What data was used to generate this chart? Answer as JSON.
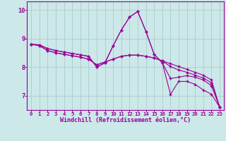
{
  "xlabel": "Windchill (Refroidissement éolien,°C)",
  "background_color": "#cce8e8",
  "grid_color": "#aacccc",
  "line_color": "#990099",
  "hours": [
    0,
    1,
    2,
    3,
    4,
    5,
    6,
    7,
    8,
    9,
    10,
    11,
    12,
    13,
    14,
    15,
    16,
    17,
    18,
    19,
    20,
    21,
    22,
    23
  ],
  "curve1": [
    8.8,
    8.78,
    8.65,
    8.58,
    8.53,
    8.48,
    8.43,
    8.38,
    8.0,
    8.15,
    8.75,
    9.3,
    9.75,
    9.95,
    9.25,
    8.45,
    8.15,
    7.05,
    7.5,
    7.5,
    7.4,
    7.2,
    7.05,
    6.6
  ],
  "curve2": [
    8.8,
    8.78,
    8.65,
    8.58,
    8.53,
    8.48,
    8.43,
    8.38,
    8.0,
    8.15,
    8.75,
    9.3,
    9.75,
    9.95,
    9.25,
    8.45,
    8.15,
    7.6,
    7.65,
    7.7,
    7.65,
    7.55,
    7.35,
    6.6
  ],
  "curve3": [
    8.8,
    8.75,
    8.58,
    8.5,
    8.45,
    8.4,
    8.35,
    8.28,
    8.08,
    8.18,
    8.28,
    8.38,
    8.42,
    8.42,
    8.38,
    8.32,
    8.22,
    8.12,
    8.02,
    7.92,
    7.82,
    7.72,
    7.55,
    6.6
  ],
  "curve4": [
    8.8,
    8.75,
    8.58,
    8.5,
    8.45,
    8.4,
    8.35,
    8.28,
    8.08,
    8.18,
    8.28,
    8.38,
    8.42,
    8.42,
    8.38,
    8.32,
    8.22,
    8.02,
    7.9,
    7.82,
    7.72,
    7.62,
    7.45,
    6.6
  ],
  "ylim": [
    6.5,
    10.3
  ],
  "yticks": [
    7,
    8,
    9,
    10
  ],
  "xticks": [
    0,
    1,
    2,
    3,
    4,
    5,
    6,
    7,
    8,
    9,
    10,
    11,
    12,
    13,
    14,
    15,
    16,
    17,
    18,
    19,
    20,
    21,
    22,
    23
  ]
}
